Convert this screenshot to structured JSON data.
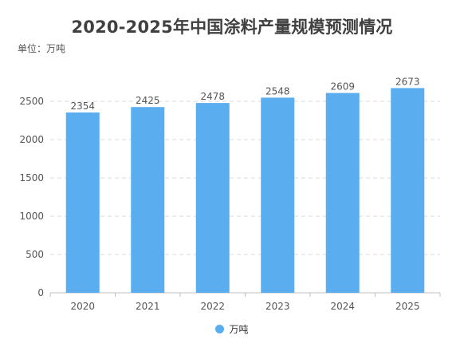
{
  "title": "2020-2025年中国涂料产量规模预测情况",
  "unit_label": "单位：万吨",
  "colors": {
    "bar": "#5aaef0",
    "grid": "#d9d9d9",
    "axis": "#bfbfbf",
    "text": "#555555"
  },
  "chart_data": {
    "type": "bar",
    "categories": [
      "2020",
      "2021",
      "2022",
      "2023",
      "2024",
      "2025"
    ],
    "series": [
      {
        "name": "万吨",
        "values": [
          2354,
          2425,
          2478,
          2548,
          2609,
          2673
        ]
      }
    ],
    "ylim": [
      0,
      2500
    ],
    "yticks": [
      0,
      500,
      1000,
      1500,
      2000,
      2500
    ],
    "grid": true,
    "legend": "bottom-center",
    "data_labels": true
  }
}
